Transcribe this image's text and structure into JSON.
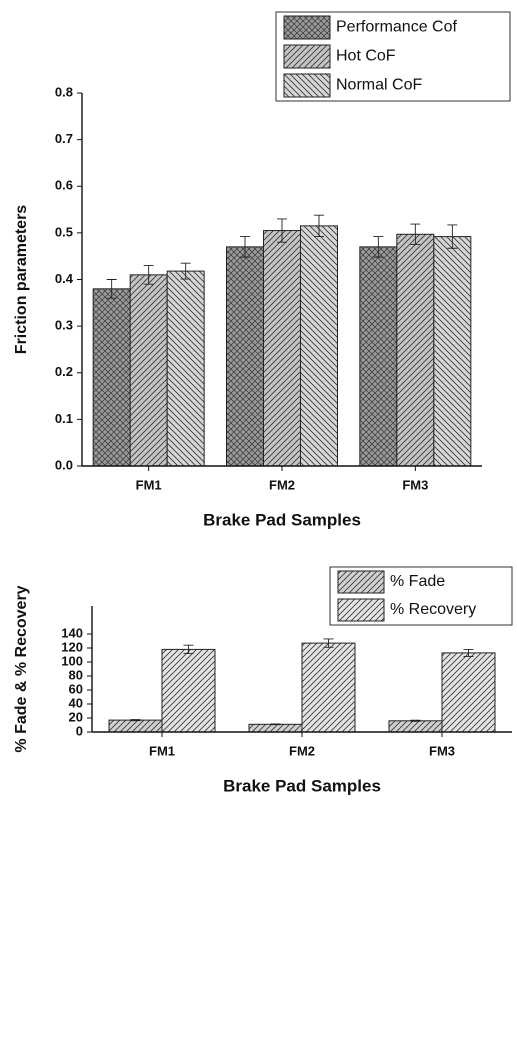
{
  "chart_data": [
    {
      "type": "bar",
      "x_label": "Brake Pad Samples",
      "y_label": "Friction parameters",
      "categories": [
        "FM1",
        "FM2",
        "FM3"
      ],
      "series": [
        {
          "name": "Performance Cof",
          "color": "#9a9a9a",
          "hatch": "cross",
          "values": [
            0.38,
            0.47,
            0.47
          ],
          "errors": [
            0.02,
            0.022,
            0.022
          ]
        },
        {
          "name": "Hot CoF",
          "color": "#c4c4c4",
          "hatch": "forward",
          "values": [
            0.41,
            0.505,
            0.497
          ],
          "errors": [
            0.02,
            0.025,
            0.022
          ]
        },
        {
          "name": "Normal CoF",
          "color": "#d6d6d6",
          "hatch": "back",
          "values": [
            0.418,
            0.515,
            0.492
          ],
          "errors": [
            0.017,
            0.023,
            0.025
          ]
        }
      ],
      "ylim": [
        0,
        0.8
      ],
      "yticks": [
        {
          "value": 0,
          "label": "0.0"
        },
        0.1,
        0.2,
        0.3,
        0.4,
        0.5,
        0.6,
        0.7,
        0.8
      ],
      "legend": "top-right"
    },
    {
      "type": "bar",
      "x_label": "Brake Pad Samples",
      "y_label": "% Fade & % Recovery",
      "categories": [
        "FM1",
        "FM2",
        "FM3"
      ],
      "series": [
        {
          "name": "% Fade",
          "color": "#d0d0d0",
          "hatch": "forward",
          "values": [
            17,
            11,
            16
          ],
          "errors": [
            0.8,
            0.5,
            0.8
          ]
        },
        {
          "name": "% Recovery",
          "color": "#e4e4e4",
          "hatch": "forward",
          "values": [
            118,
            127,
            113
          ],
          "errors": [
            6,
            6,
            5
          ]
        }
      ],
      "ylim": [
        0,
        180
      ],
      "yticks": [
        0,
        20,
        40,
        60,
        80,
        100,
        120,
        140
      ],
      "legend": "top-right"
    }
  ]
}
